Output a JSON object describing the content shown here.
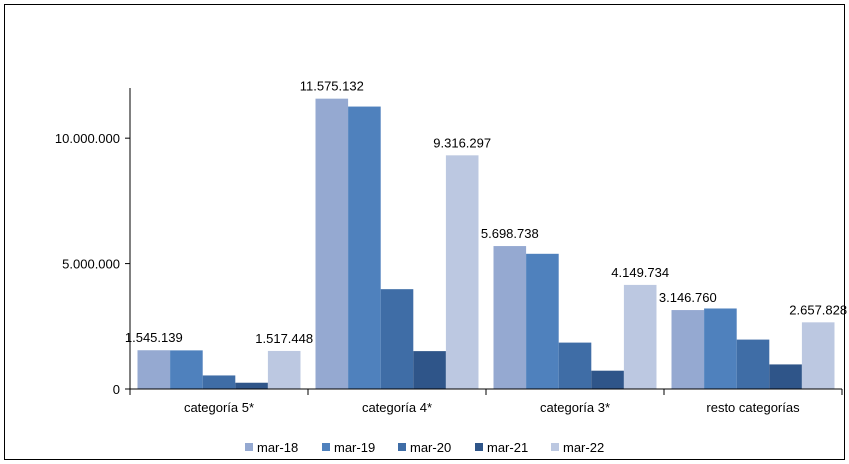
{
  "chart_data": {
    "type": "bar",
    "title": "",
    "xlabel": "",
    "ylabel": "",
    "categories": [
      "categoría 5*",
      "categoría 4*",
      "categoría 3*",
      "resto categorías"
    ],
    "series": [
      {
        "name": "mar-18",
        "color": "#95A9D1",
        "values": [
          1545139,
          11575132,
          5698738,
          3146760
        ]
      },
      {
        "name": "mar-19",
        "color": "#4F81BD",
        "values": [
          1540000,
          11260000,
          5390000,
          3210000
        ]
      },
      {
        "name": "mar-20",
        "color": "#3F6DA6",
        "values": [
          540000,
          3980000,
          1850000,
          1970000
        ]
      },
      {
        "name": "mar-21",
        "color": "#2F5589",
        "values": [
          250000,
          1510000,
          730000,
          980000
        ]
      },
      {
        "name": "mar-22",
        "color": "#BCC8E1",
        "values": [
          1517448,
          9316297,
          4149734,
          2657828
        ]
      }
    ],
    "data_labels": [
      {
        "category": 0,
        "series": 0,
        "text": "1.545.139"
      },
      {
        "category": 0,
        "series": 4,
        "text": "1.517.448"
      },
      {
        "category": 1,
        "series": 0,
        "text": "11.575.132"
      },
      {
        "category": 1,
        "series": 4,
        "text": "9.316.297"
      },
      {
        "category": 2,
        "series": 0,
        "text": "5.698.738"
      },
      {
        "category": 2,
        "series": 4,
        "text": "4.149.734"
      },
      {
        "category": 3,
        "series": 0,
        "text": "3.146.760"
      },
      {
        "category": 3,
        "series": 4,
        "text": "2.657.828"
      }
    ],
    "y_ticks": [
      {
        "value": 0,
        "label": "0"
      },
      {
        "value": 5000000,
        "label": "5.000.000"
      },
      {
        "value": 10000000,
        "label": "10.000.000"
      }
    ],
    "ylim": [
      0,
      12000000
    ],
    "grid": false,
    "legend_position": "bottom"
  }
}
